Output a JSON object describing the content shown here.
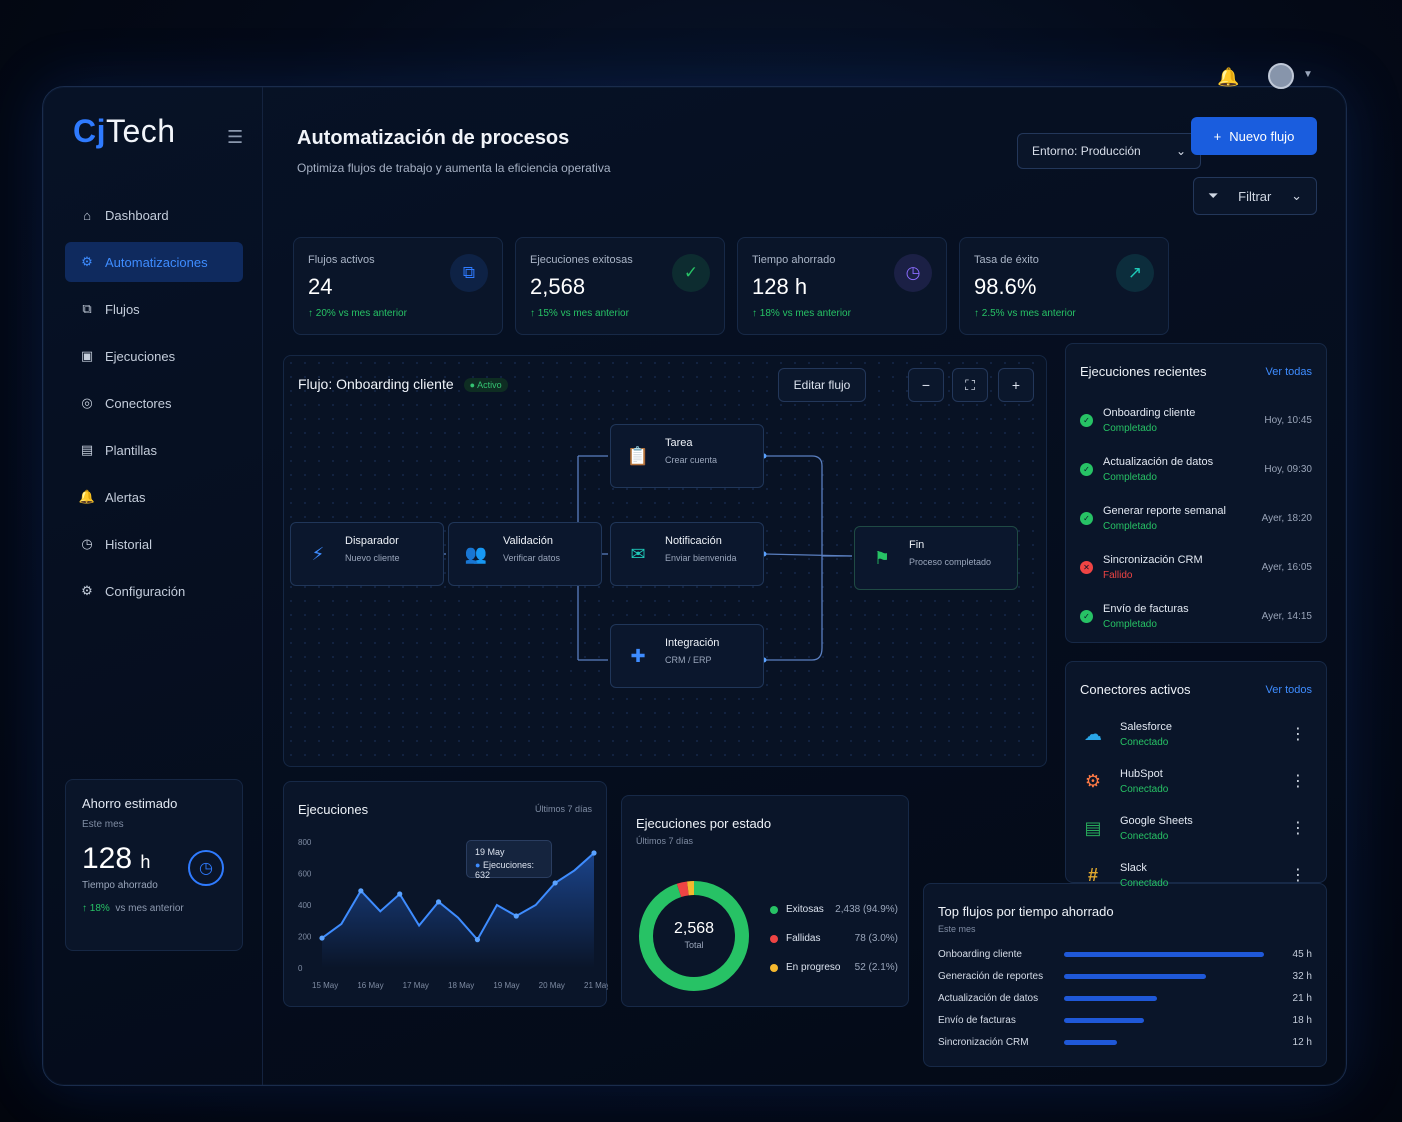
{
  "brand": {
    "prefix": "Cj",
    "name": "Tech"
  },
  "sidebar": {
    "items": [
      {
        "label": "Dashboard",
        "icon": "home-icon"
      },
      {
        "label": "Automatizaciones",
        "icon": "automation-icon",
        "active": true
      },
      {
        "label": "Flujos",
        "icon": "flows-icon"
      },
      {
        "label": "Ejecuciones",
        "icon": "executions-icon"
      },
      {
        "label": "Conectores",
        "icon": "connectors-icon"
      },
      {
        "label": "Plantillas",
        "icon": "templates-icon"
      },
      {
        "label": "Alertas",
        "icon": "bell-icon"
      },
      {
        "label": "Historial",
        "icon": "history-icon"
      },
      {
        "label": "Configuración",
        "icon": "gear-icon"
      }
    ]
  },
  "savings": {
    "title": "Ahorro estimado",
    "period": "Este mes",
    "value": "128",
    "unit": "h",
    "label": "Tiempo ahorrado",
    "delta": "18%",
    "delta_text": "vs mes anterior"
  },
  "header": {
    "title": "Automatización de procesos",
    "subtitle": "Optimiza flujos de trabajo y aumenta la eficiencia operativa",
    "environment": "Entorno: Producción",
    "new_flow": "Nuevo flujo",
    "filter": "Filtrar"
  },
  "kpis": [
    {
      "label": "Flujos activos",
      "value": "24",
      "delta": "20%",
      "delta_text": "vs mes anterior",
      "icon": "flow-network-icon",
      "color": "#2f7bff"
    },
    {
      "label": "Ejecuciones exitosas",
      "value": "2,568",
      "delta": "15%",
      "delta_text": "vs mes anterior",
      "icon": "check-circle-icon",
      "color": "#27c265"
    },
    {
      "label": "Tiempo ahorrado",
      "value": "128 h",
      "delta": "18%",
      "delta_text": "vs mes anterior",
      "icon": "clock-icon",
      "color": "#8b6cff"
    },
    {
      "label": "Tasa de éxito",
      "value": "98.6%",
      "delta": "2.5%",
      "delta_text": "vs mes anterior",
      "icon": "trend-up-icon",
      "color": "#1fc9b8"
    }
  ],
  "flow": {
    "title": "Flujo: Onboarding cliente",
    "status": "Activo",
    "edit": "Editar flujo",
    "zoom_out": "−",
    "fit": "⛶",
    "zoom_in": "+",
    "nodes": [
      {
        "title": "Disparador",
        "sub": "Nuevo cliente",
        "icon": "bolt-icon",
        "glyph": "⚡",
        "color": "#3e8cff"
      },
      {
        "title": "Validación",
        "sub": "Verificar datos",
        "icon": "users-icon",
        "glyph": "👥",
        "color": "#3e8cff"
      },
      {
        "title": "Tarea",
        "sub": "Crear cuenta",
        "icon": "clipboard-icon",
        "glyph": "📋",
        "color": "#8b6cff"
      },
      {
        "title": "Notificación",
        "sub": "Enviar bienvenida",
        "icon": "mail-icon",
        "glyph": "✉",
        "color": "#1fc9b8"
      },
      {
        "title": "Integración",
        "sub": "CRM / ERP",
        "icon": "puzzle-icon",
        "glyph": "✚",
        "color": "#3e8cff"
      },
      {
        "title": "Fin",
        "sub": "Proceso completado",
        "icon": "flag-icon",
        "glyph": "⚑",
        "color": "#27c265"
      }
    ]
  },
  "recent": {
    "title": "Ejecuciones recientes",
    "link": "Ver todas",
    "items": [
      {
        "name": "Onboarding cliente",
        "status": "Completado",
        "time": "Hoy, 10:45",
        "ok": true
      },
      {
        "name": "Actualización de datos",
        "status": "Completado",
        "time": "Hoy, 09:30",
        "ok": true
      },
      {
        "name": "Generar reporte semanal",
        "status": "Completado",
        "time": "Ayer, 18:20",
        "ok": true
      },
      {
        "name": "Sincronización CRM",
        "status": "Fallido",
        "time": "Ayer, 16:05",
        "ok": false
      },
      {
        "name": "Envío de facturas",
        "status": "Completado",
        "time": "Ayer, 14:15",
        "ok": true
      }
    ]
  },
  "connectors": {
    "title": "Conectores activos",
    "link": "Ver todos",
    "items": [
      {
        "name": "Salesforce",
        "status": "Conectado",
        "icon": "salesforce-icon",
        "glyph": "☁",
        "color": "#2aa6e8"
      },
      {
        "name": "HubSpot",
        "status": "Conectado",
        "icon": "hubspot-icon",
        "glyph": "⚙",
        "color": "#ff7a45"
      },
      {
        "name": "Google Sheets",
        "status": "Conectado",
        "icon": "sheets-icon",
        "glyph": "▤",
        "color": "#27a95a"
      },
      {
        "name": "Slack",
        "status": "Conectado",
        "icon": "slack-icon",
        "glyph": "#",
        "color": "#e0a82e"
      }
    ]
  },
  "executions_chart": {
    "title": "Ejecuciones",
    "period": "Últimos 7 días",
    "tooltip_date": "19 May",
    "tooltip_value": "Ejecuciones: 632"
  },
  "status_chart": {
    "title": "Ejecuciones por estado",
    "period": "Últimos 7 días",
    "total": "2,568",
    "total_label": "Total"
  },
  "top_flows": {
    "title": "Top flujos por tiempo ahorrado",
    "period": "Este mes"
  },
  "chart_data": [
    {
      "type": "line",
      "title": "Ejecuciones",
      "x": [
        "15 May",
        "16 May",
        "17 May",
        "18 May",
        "19 May",
        "20 May",
        "21 May"
      ],
      "yticks": [
        "800",
        "600",
        "400",
        "200",
        "0"
      ],
      "ylim": [
        0,
        800
      ],
      "points": [
        190,
        280,
        490,
        360,
        470,
        270,
        420,
        320,
        180,
        400,
        330,
        400,
        540,
        620,
        730
      ],
      "grid": false
    },
    {
      "type": "pie",
      "title": "Ejecuciones por estado",
      "series": [
        {
          "name": "Exitosas",
          "value": 2438,
          "label": "2,438 (94.9%)",
          "color": "#27c265"
        },
        {
          "name": "Fallidas",
          "value": 78,
          "label": "78 (3.0%)",
          "color": "#ef4444"
        },
        {
          "name": "En progreso",
          "value": 52,
          "label": "52 (2.1%)",
          "color": "#f5b82e"
        }
      ]
    },
    {
      "type": "bar",
      "title": "Top flujos por tiempo ahorrado",
      "categories": [
        "Onboarding cliente",
        "Generación de reportes",
        "Actualización de datos",
        "Envío de facturas",
        "Sincronización CRM"
      ],
      "value_labels": [
        "45 h",
        "32 h",
        "21 h",
        "18 h",
        "12 h"
      ],
      "values": [
        45,
        32,
        21,
        18,
        12
      ]
    }
  ]
}
